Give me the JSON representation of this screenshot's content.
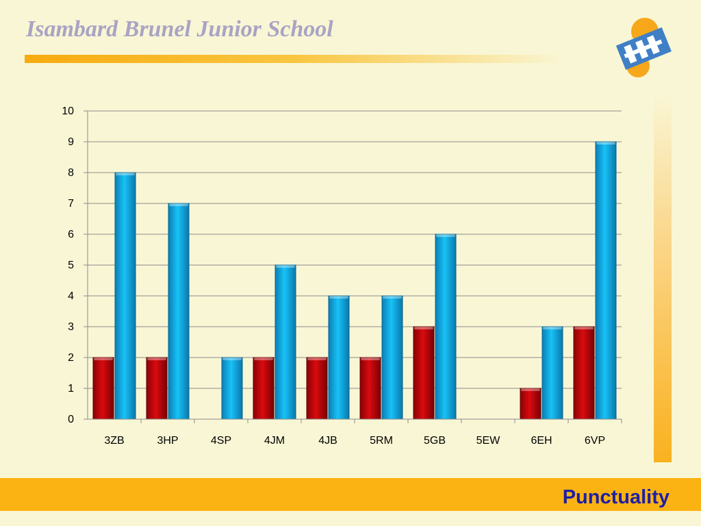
{
  "header": {
    "title": "Isambard Brunel Junior School"
  },
  "footer": {
    "label": "Punctuality"
  },
  "logo": {
    "icon": "school-sun-logo-icon"
  },
  "chart_data": {
    "type": "bar",
    "categories": [
      "3ZB",
      "3HP",
      "4SP",
      "4JM",
      "4JB",
      "5RM",
      "5GB",
      "5EW",
      "6EH",
      "6VP"
    ],
    "series": [
      {
        "values": [
          2,
          2,
          0,
          2,
          2,
          2,
          3,
          0,
          1,
          3
        ],
        "color": "#c8060a"
      },
      {
        "values": [
          8,
          7,
          2,
          5,
          4,
          4,
          6,
          0,
          3,
          9
        ],
        "color": "#11b5ee"
      }
    ],
    "ylim": [
      0,
      10
    ],
    "yticks": [
      0,
      1,
      2,
      3,
      4,
      5,
      6,
      7,
      8,
      9,
      10
    ],
    "grid": true,
    "legend": "none"
  }
}
